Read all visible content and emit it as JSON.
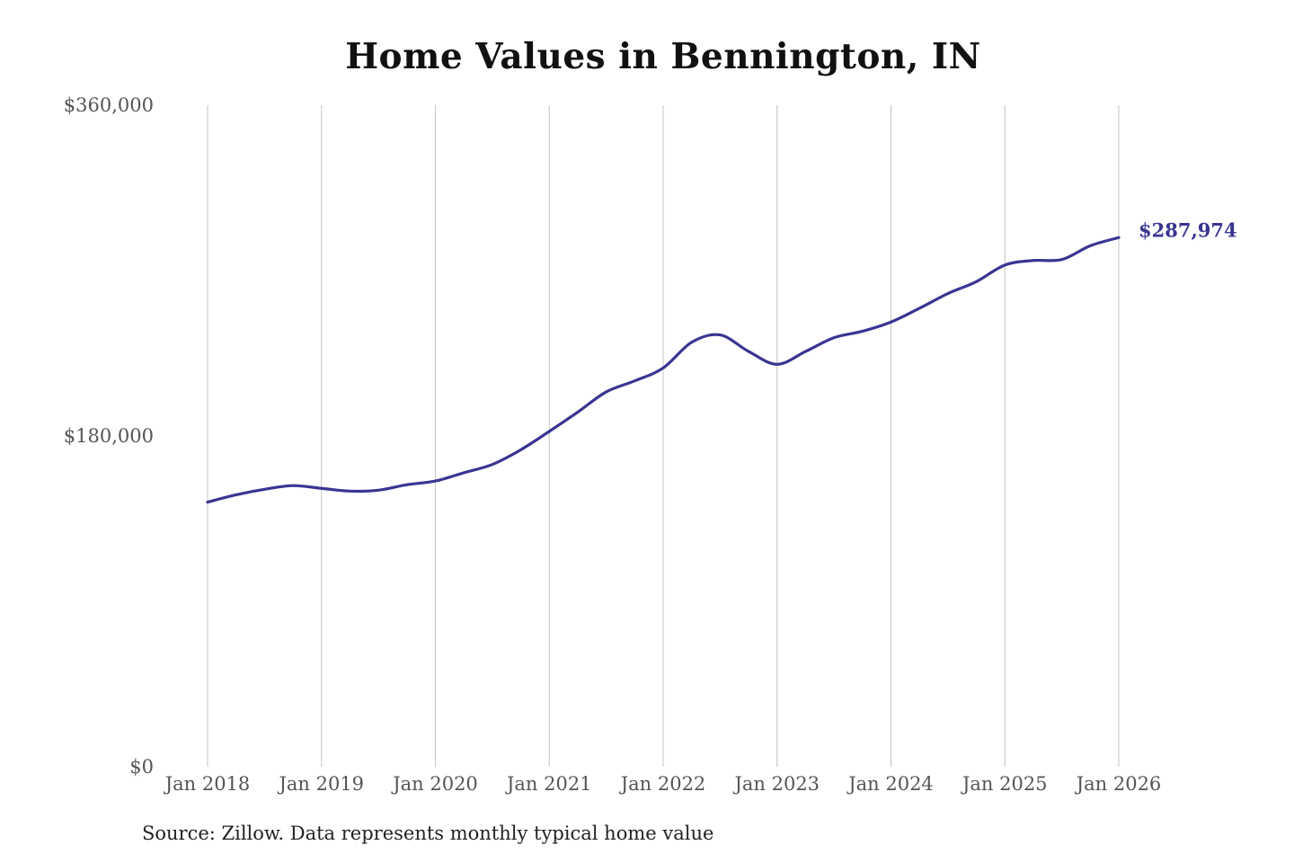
{
  "chart_data": {
    "type": "line",
    "title": "Home Values in Bennington, IN",
    "xlabel": "",
    "ylabel": "",
    "ylim": [
      0,
      360000
    ],
    "y_ticks": [
      {
        "value": 0,
        "label": "$0"
      },
      {
        "value": 180000,
        "label": "$180,000"
      },
      {
        "value": 360000,
        "label": "$360,000"
      }
    ],
    "x_ticks": [
      {
        "value": 2018,
        "label": "Jan 2018"
      },
      {
        "value": 2019,
        "label": "Jan 2019"
      },
      {
        "value": 2020,
        "label": "Jan 2020"
      },
      {
        "value": 2021,
        "label": "Jan 2021"
      },
      {
        "value": 2022,
        "label": "Jan 2022"
      },
      {
        "value": 2023,
        "label": "Jan 2023"
      },
      {
        "value": 2024,
        "label": "Jan 2024"
      },
      {
        "value": 2025,
        "label": "Jan 2025"
      },
      {
        "value": 2026,
        "label": "Jan 2026"
      }
    ],
    "xlim": [
      2018,
      2026
    ],
    "grid": {
      "vertical": true,
      "horizontal": false
    },
    "series": [
      {
        "color": "#3a3592",
        "points": [
          {
            "x": 2018.0,
            "y": 144000
          },
          {
            "x": 2018.25,
            "y": 148000
          },
          {
            "x": 2018.5,
            "y": 151000
          },
          {
            "x": 2018.75,
            "y": 153000
          },
          {
            "x": 2019.0,
            "y": 151500
          },
          {
            "x": 2019.25,
            "y": 150000
          },
          {
            "x": 2019.5,
            "y": 150500
          },
          {
            "x": 2019.75,
            "y": 153500
          },
          {
            "x": 2020.0,
            "y": 155500
          },
          {
            "x": 2020.25,
            "y": 160000
          },
          {
            "x": 2020.5,
            "y": 164500
          },
          {
            "x": 2020.75,
            "y": 172500
          },
          {
            "x": 2021.0,
            "y": 182500
          },
          {
            "x": 2021.25,
            "y": 193000
          },
          {
            "x": 2021.5,
            "y": 204000
          },
          {
            "x": 2021.75,
            "y": 210000
          },
          {
            "x": 2022.0,
            "y": 217000
          },
          {
            "x": 2022.25,
            "y": 231000
          },
          {
            "x": 2022.5,
            "y": 235000
          },
          {
            "x": 2022.75,
            "y": 226000
          },
          {
            "x": 2023.0,
            "y": 219000
          },
          {
            "x": 2023.25,
            "y": 226000
          },
          {
            "x": 2023.5,
            "y": 233500
          },
          {
            "x": 2023.75,
            "y": 237000
          },
          {
            "x": 2024.0,
            "y": 242000
          },
          {
            "x": 2024.25,
            "y": 249500
          },
          {
            "x": 2024.5,
            "y": 257500
          },
          {
            "x": 2024.75,
            "y": 264000
          },
          {
            "x": 2025.0,
            "y": 273000
          },
          {
            "x": 2025.25,
            "y": 275500
          },
          {
            "x": 2025.5,
            "y": 276000
          },
          {
            "x": 2025.75,
            "y": 283500
          },
          {
            "x": 2026.0,
            "y": 287974
          }
        ]
      }
    ],
    "end_label": "$287,974"
  },
  "source_note": "Source: Zillow. Data represents monthly typical home value"
}
